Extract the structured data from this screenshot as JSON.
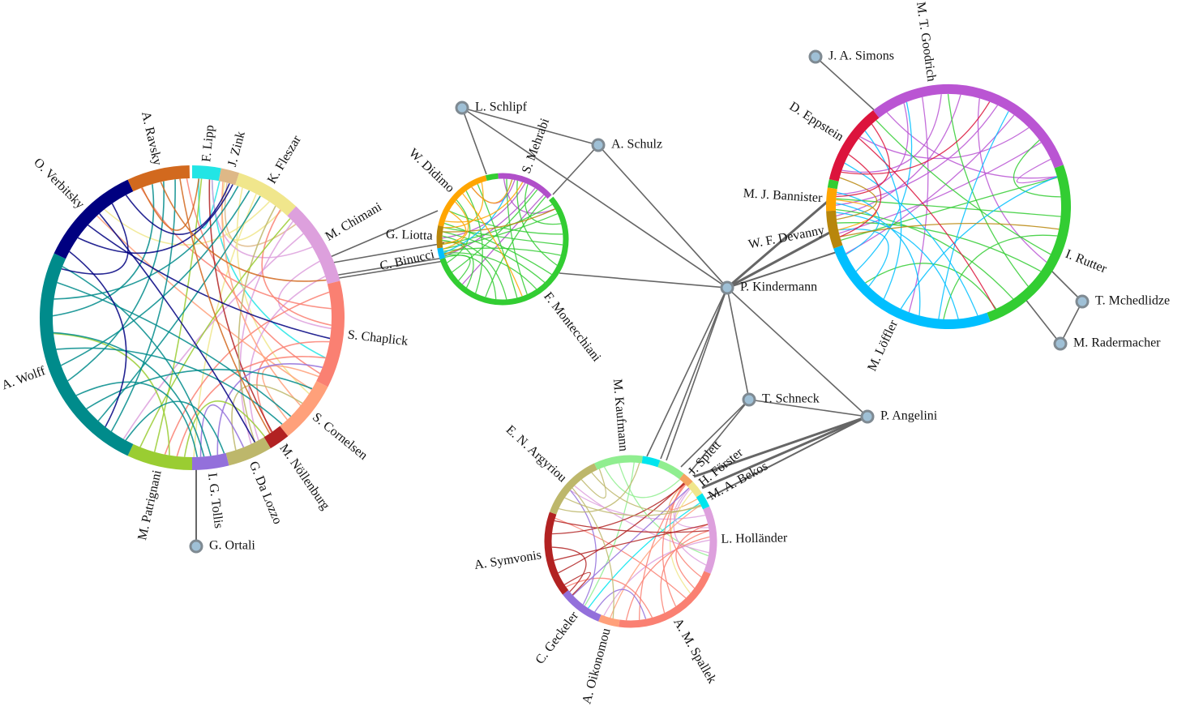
{
  "clusters": [
    {
      "arcs": [
        {
          "name": "F. Lipp",
          "color": "#22e5e5"
        },
        {
          "name": "J. Zink",
          "color": "#deb887"
        },
        {
          "name": "K. Fleszar",
          "color": "#f0e68c"
        },
        {
          "name": "M. Chimani",
          "color": "#dda0dd"
        },
        {
          "name": "S. Chaplick",
          "color": "#fa8072"
        },
        {
          "name": "S. Cornelsen",
          "color": "#ffa07a"
        },
        {
          "name": "M. Nöllenburg",
          "color": "#b22222"
        },
        {
          "name": "G. Da Lozzo",
          "color": "#bdb76b"
        },
        {
          "name": "I. G. Tollis",
          "color": "#9370db"
        },
        {
          "name": "M. Patrignani",
          "color": "#9acd32"
        },
        {
          "name": "A. Wolff",
          "color": "#008b8b"
        },
        {
          "name": "O. Verbitsky",
          "color": "#000080"
        },
        {
          "name": "A. Ravsky",
          "color": "#d2691e"
        }
      ]
    },
    {
      "arcs": [
        {
          "name": "S. Mehrabi",
          "color": "#b04fc9"
        },
        {
          "name": "F. Montecchiani",
          "color": "#32cd32"
        },
        {
          "name": "C. Binucci",
          "color": "#00bfff"
        },
        {
          "name": "G. Liotta",
          "color": "#b8860b"
        },
        {
          "name": "W. Didimo",
          "color": "#ffa500"
        }
      ]
    },
    {
      "arcs": [
        {
          "name": "M. Kaufmann",
          "color": "#90ee90"
        },
        {
          "name": "J. Splett",
          "color": "#f4a460"
        },
        {
          "name": "H. Förster",
          "color": "#f0e68c"
        },
        {
          "name": "M. A. Bekos",
          "color": "#00e5ee"
        },
        {
          "name": "L. Holländer",
          "color": "#dda0dd"
        },
        {
          "name": "A. M. Spallek",
          "color": "#fa8072"
        },
        {
          "name": "A. Oikonomou",
          "color": "#ffa07a"
        },
        {
          "name": "C. Geckeler",
          "color": "#9370db"
        },
        {
          "name": "A. Symvonis",
          "color": "#b22222"
        },
        {
          "name": "E. N. Argyriou",
          "color": "#bdb76b"
        }
      ]
    },
    {
      "arcs": [
        {
          "name": "M. T. Goodrich",
          "color": "#ba55d3"
        },
        {
          "name": "I. Rutter",
          "color": "#32cd32"
        },
        {
          "name": "M. Löffler",
          "color": "#00bfff"
        },
        {
          "name": "W. F. Devanny",
          "color": "#b8860b"
        },
        {
          "name": "M. J. Bannister",
          "color": "#ffa500"
        },
        {
          "name": "D. Eppstein",
          "color": "#dc143c"
        }
      ]
    }
  ],
  "nodes": [
    {
      "label": "L. Schlipf"
    },
    {
      "label": "A. Schulz"
    },
    {
      "label": "P. Kindermann"
    },
    {
      "label": "T. Schneck"
    },
    {
      "label": "P. Angelini"
    },
    {
      "label": "J. A. Simons"
    },
    {
      "label": "T. Mchedlidze"
    },
    {
      "label": "M. Radermacher"
    },
    {
      "label": "G. Ortali"
    }
  ]
}
